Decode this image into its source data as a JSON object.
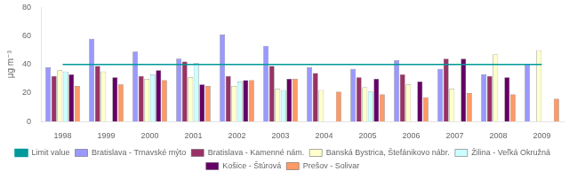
{
  "chart_data": {
    "type": "bar",
    "ylabel": "μg m⁻³",
    "categories": [
      "1998",
      "1999",
      "2000",
      "2001",
      "2002",
      "2003",
      "2004",
      "2005",
      "2006",
      "2007",
      "2008",
      "2009"
    ],
    "series": [
      {
        "name": "Bratislava - Trnavské mýto",
        "color": "#9999ff",
        "values": [
          38,
          58,
          49,
          44,
          61,
          53,
          38,
          37,
          43,
          37,
          33,
          40
        ]
      },
      {
        "name": "Bratislava - Kamenné nám.",
        "color": "#993366",
        "values": [
          32,
          39,
          32,
          42,
          32,
          39,
          34,
          31,
          33,
          44,
          32,
          null
        ]
      },
      {
        "name": "Banská Bystrica, Štefánikovo nábr.",
        "color": "#ffffcc",
        "values": [
          36,
          35,
          30,
          31,
          25,
          23,
          22,
          24,
          26,
          23,
          47,
          50
        ]
      },
      {
        "name": "Žilina - Veľká Okružná",
        "color": "#ccffff",
        "values": [
          35,
          null,
          33,
          41,
          28,
          22,
          null,
          21,
          null,
          null,
          null,
          null
        ]
      },
      {
        "name": "Košice - Štúrová",
        "color": "#660066",
        "values": [
          33,
          31,
          36,
          26,
          29,
          30,
          null,
          30,
          28,
          44,
          31,
          null
        ]
      },
      {
        "name": "Prešov - Solivar",
        "color": "#ff9966",
        "values": [
          25,
          26,
          29,
          25,
          29,
          30,
          21,
          19,
          17,
          20,
          19,
          16
        ]
      },
      {
        "name": "Limit value",
        "type": "line",
        "color": "#009999",
        "values": [
          40,
          40,
          40,
          40,
          40,
          40,
          40,
          40,
          40,
          40,
          40,
          40
        ]
      }
    ],
    "ylim": [
      0,
      80
    ],
    "yticks": [
      0,
      20,
      40,
      60,
      80
    ],
    "grid": false,
    "legend": "bottom"
  }
}
